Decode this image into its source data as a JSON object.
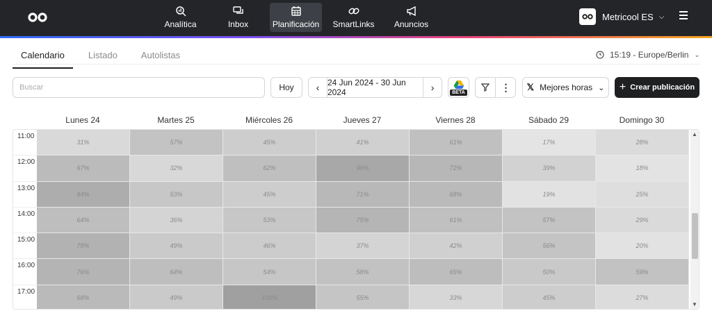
{
  "nav": {
    "items": [
      {
        "label": "Analítica",
        "icon": "analytics-icon"
      },
      {
        "label": "Inbox",
        "icon": "inbox-icon"
      },
      {
        "label": "Planificación",
        "icon": "calendar-icon",
        "active": true
      },
      {
        "label": "SmartLinks",
        "icon": "link-icon"
      },
      {
        "label": "Anuncios",
        "icon": "megaphone-icon"
      }
    ]
  },
  "account": {
    "name": "Metricool ES"
  },
  "tabs": [
    {
      "label": "Calendario",
      "active": true
    },
    {
      "label": "Listado"
    },
    {
      "label": "Autolistas"
    }
  ],
  "timezone": "15:19 - Europe/Berlin",
  "toolbar": {
    "search_placeholder": "Buscar",
    "today_label": "Hoy",
    "date_range": "24 Jun 2024 - 30 Jun 2024",
    "beta_label": "BETA",
    "best_hours_label": "Mejores horas",
    "create_label": "Crear publicación"
  },
  "days": [
    "Lunes 24",
    "Martes 25",
    "Miércoles 26",
    "Jueves 27",
    "Viernes 28",
    "Sábado 29",
    "Domingo 30"
  ],
  "times": [
    "11:00",
    "12:00",
    "13:00",
    "14:00",
    "15:00",
    "16:00",
    "17:00"
  ],
  "heatmap": [
    [
      31,
      57,
      45,
      41,
      61,
      17,
      28
    ],
    [
      67,
      32,
      62,
      90,
      72,
      39,
      18
    ],
    [
      84,
      53,
      45,
      71,
      68,
      19,
      25
    ],
    [
      64,
      36,
      53,
      75,
      61,
      57,
      29
    ],
    [
      78,
      49,
      46,
      37,
      42,
      56,
      20
    ],
    [
      76,
      64,
      54,
      58,
      65,
      50,
      59
    ],
    [
      68,
      49,
      100,
      55,
      33,
      45,
      27
    ]
  ]
}
